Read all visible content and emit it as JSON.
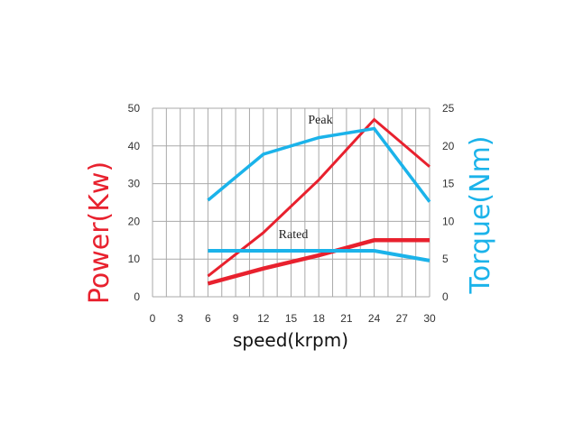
{
  "chart_data": {
    "type": "line",
    "xlabel": "speed(krpm)",
    "ylabel_left": "Power(Kw)",
    "ylabel_right": "Torque(Nm)",
    "xlim": [
      0,
      30
    ],
    "ylim_left": [
      0,
      50
    ],
    "ylim_right": [
      0,
      25
    ],
    "x_ticks": [
      0,
      3,
      6,
      9,
      12,
      15,
      18,
      21,
      24,
      27,
      30
    ],
    "y_ticks_left": [
      0,
      10,
      20,
      30,
      40,
      50
    ],
    "y_ticks_right": [
      0,
      5,
      10,
      15,
      20,
      25
    ],
    "grid": true,
    "annotations": [
      "Peak",
      "Rated"
    ],
    "colors": {
      "power": "#e8212e",
      "torque": "#1bb3ea"
    },
    "series": [
      {
        "axis": "left",
        "style": "peak-power",
        "x": [
          6,
          12,
          18,
          24,
          30
        ],
        "y": [
          5.5,
          17,
          31,
          47,
          34.5
        ]
      },
      {
        "axis": "left",
        "style": "rated-power",
        "x": [
          6,
          12,
          18,
          24,
          30
        ],
        "y": [
          3.5,
          7.5,
          11,
          15,
          15
        ]
      },
      {
        "axis": "right",
        "style": "peak-torque",
        "x": [
          6,
          12,
          18,
          24,
          30
        ],
        "y": [
          12.8,
          18.9,
          21.1,
          22.3,
          12.6
        ]
      },
      {
        "axis": "right",
        "style": "rated-torque",
        "x": [
          6,
          12,
          18,
          24,
          30
        ],
        "y": [
          6.1,
          6.1,
          6.1,
          6.1,
          4.8
        ]
      }
    ]
  }
}
